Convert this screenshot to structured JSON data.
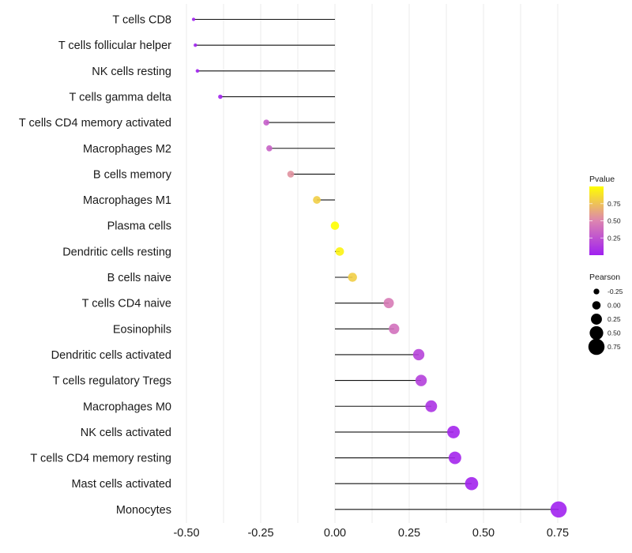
{
  "chart_data": {
    "type": "lollipop",
    "title": "",
    "xlabel": "",
    "ylabel": "",
    "xlim": [
      -0.52,
      0.77
    ],
    "xticks": [
      -0.5,
      -0.25,
      0.0,
      0.25,
      0.5,
      0.75
    ],
    "xtick_labels": [
      "-0.50",
      "-0.25",
      "0.00",
      "0.25",
      "0.50",
      "0.75"
    ],
    "grid": true,
    "categories": [
      "T cells CD8",
      "T cells follicular helper",
      "NK cells resting",
      "T cells gamma delta",
      "T cells CD4 memory activated",
      "Macrophages M2",
      "B cells memory",
      "Macrophages M1",
      "Plasma cells",
      "Dendritic cells resting",
      "B cells naive",
      "T cells CD4 naive",
      "Eosinophils",
      "Dendritic cells activated",
      "T cells regulatory  Tregs",
      "Macrophages M0",
      "NK cells activated",
      "T cells CD4 memory resting",
      "Mast cells activated",
      "Monocytes"
    ],
    "series": [
      {
        "name": "Pearson",
        "values": [
          -0.476,
          -0.47,
          -0.463,
          -0.386,
          -0.231,
          -0.221,
          -0.149,
          -0.061,
          0.0,
          0.016,
          0.059,
          0.181,
          0.199,
          0.282,
          0.29,
          0.324,
          0.399,
          0.404,
          0.46,
          0.753
        ]
      },
      {
        "name": "Pvalue",
        "values": [
          0.01,
          0.01,
          0.01,
          0.02,
          0.3,
          0.33,
          0.55,
          0.8,
          1.0,
          0.95,
          0.8,
          0.45,
          0.4,
          0.18,
          0.16,
          0.1,
          0.03,
          0.03,
          0.02,
          0.01
        ]
      }
    ],
    "legends": [
      {
        "title": "Pvalue",
        "type": "colorbar",
        "range": [
          0,
          1
        ],
        "ticks": [
          0.25,
          0.5,
          0.75
        ],
        "tick_labels": [
          "0.25",
          "0.50",
          "0.75"
        ],
        "low_color": "#a020f0",
        "mid_color": "#dd85b0",
        "high_color": "#ffff00",
        "placement": "right"
      },
      {
        "title": "Pearson",
        "type": "size",
        "values": [
          -0.25,
          0.0,
          0.25,
          0.5,
          0.75
        ],
        "labels": [
          "-0.25",
          "0.00",
          "0.25",
          "0.50",
          "0.75"
        ],
        "placement": "right"
      }
    ]
  }
}
